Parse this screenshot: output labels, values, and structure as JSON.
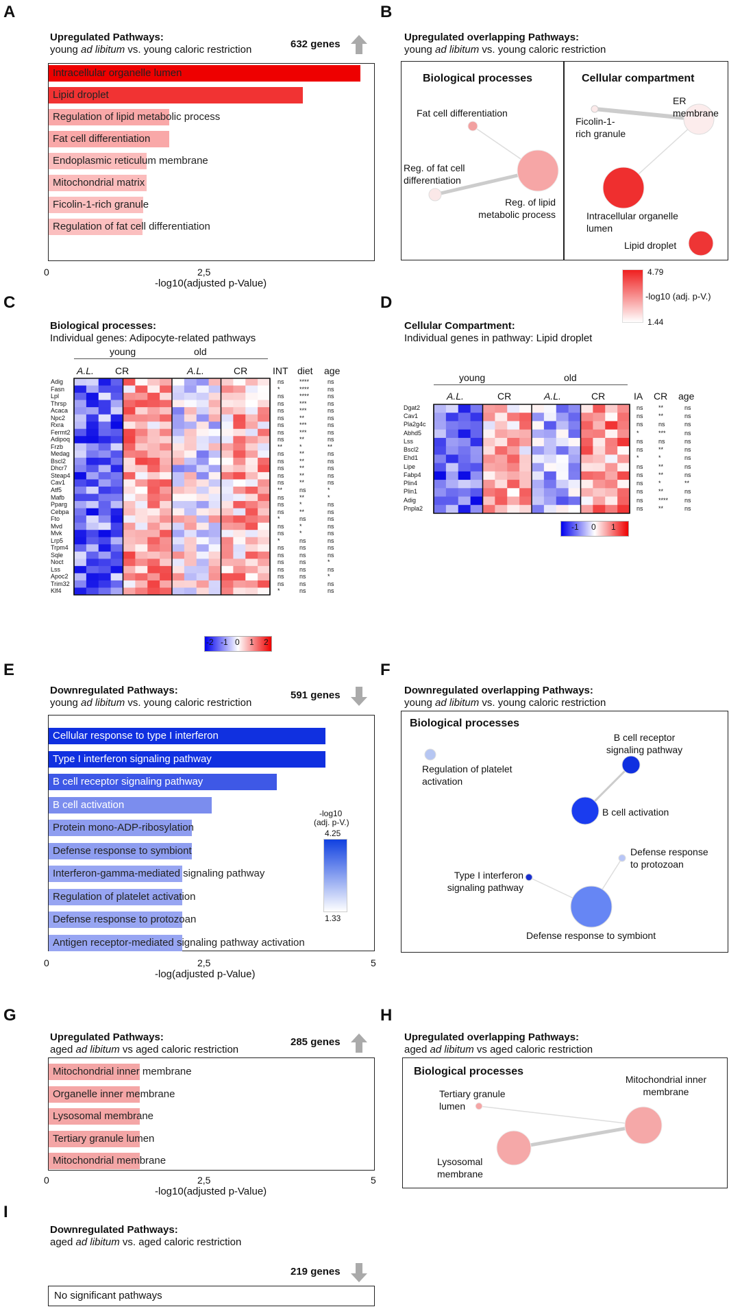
{
  "colors": {
    "up": "#f03030",
    "down": "#1030e0",
    "edge": "#cccccc"
  },
  "A": {
    "label": "A",
    "title": "Upregulated Pathways:",
    "sub_pre": "young ",
    "sub_ital": "ad libitum",
    "sub_post": " vs. young caloric restriction",
    "genes": "632 genes",
    "xlabel": "-log10(adjusted p-Value)",
    "tick0": "0",
    "tick1": "2,5",
    "chart_data": {
      "type": "bar",
      "orientation": "horizontal",
      "categories": [
        "Intracellular organelle lumen",
        "Lipid droplet",
        "Regulation of lipid metabolic process",
        "Fat cell differentiation",
        "Endoplasmic reticulum membrane",
        "Mitochondrial matrix",
        "Ficolin-1-rich granule",
        "Regulation of fat cell differentiation"
      ],
      "values": [
        4.79,
        3.9,
        1.85,
        1.85,
        1.5,
        1.5,
        1.45,
        1.44
      ],
      "xlim": [
        0,
        5
      ],
      "xlabel": "-log10(adjusted p-Value)",
      "color_min": 1.44,
      "color_max": 4.79
    }
  },
  "B": {
    "label": "B",
    "title": "Upregulated overlapping Pathways:",
    "sub_pre": "young ",
    "sub_ital": "ad libitum",
    "sub_post": " vs. young caloric restriction",
    "sec1": "Biological processes",
    "sec2": "Cellular compartment",
    "n1": "Fat cell differentiation",
    "n2a": "Reg. of fat cell",
    "n2b": "differentiation",
    "n3a": "Reg. of lipid",
    "n3b": "metabolic process",
    "n4": "ER membrane",
    "n5a": "Ficolin-1-",
    "n5b": "rich granule",
    "n6a": "Intracellular organelle",
    "n6b": "lumen",
    "n7": "Lipid droplet",
    "cb_max": "4.79",
    "cb_min": "1.44",
    "cb_label": "-log10 (adj. p-V.)"
  },
  "C": {
    "label": "C",
    "title": "Biological processes:",
    "sub": "Individual genes: Adipocyte-related pathways",
    "young": "young",
    "old": "old",
    "al": "A.L.",
    "cr": "CR",
    "int": "INT",
    "diet": "diet",
    "age": "age",
    "genes": [
      "Adig",
      "Fasn",
      "Lpl",
      "Thrsp",
      "Acaca",
      "Npc2",
      "Rxra",
      "Fermt2",
      "Adipoq",
      "Frzb",
      "Medag",
      "Bscl2",
      "Dhcr7",
      "Steap4",
      "Cav1",
      "Atf5",
      "Mafb",
      "Pparg",
      "Cebpa",
      "Fto",
      "Mvd",
      "Mvk",
      "Lrp5",
      "Trpm4",
      "Sqle",
      "Noct",
      "Lss",
      "Apoc2",
      "Trim32",
      "Klf4"
    ],
    "sig_int": [
      "ns",
      "*",
      "ns",
      "ns",
      "ns",
      "ns",
      "ns",
      "ns",
      "ns",
      "**",
      "ns",
      "ns",
      "ns",
      "ns",
      "ns",
      "**",
      "ns",
      "ns",
      "ns",
      "*",
      "ns",
      "ns",
      "*",
      "ns",
      "ns",
      "ns",
      "ns",
      "ns",
      "ns",
      "*"
    ],
    "sig_diet": [
      "****",
      "****",
      "****",
      "***",
      "***",
      "**",
      "***",
      "***",
      "**",
      "*",
      "**",
      "**",
      "**",
      "**",
      "**",
      "ns",
      "**",
      "*",
      "**",
      "ns",
      "*",
      "*",
      "ns",
      "ns",
      "ns",
      "ns",
      "ns",
      "ns",
      "ns",
      "ns"
    ],
    "sig_age": [
      "ns",
      "ns",
      "ns",
      "ns",
      "ns",
      "ns",
      "ns",
      "ns",
      "ns",
      "**",
      "ns",
      "ns",
      "ns",
      "ns",
      "ns",
      "*",
      "*",
      "ns",
      "ns",
      "ns",
      "ns",
      "ns",
      "ns",
      "ns",
      "ns",
      "*",
      "ns",
      "*",
      "ns",
      "ns"
    ],
    "cb_ticks": [
      "-2",
      "-1",
      "0",
      "1",
      "2"
    ]
  },
  "D": {
    "label": "D",
    "title": "Cellular Compartment:",
    "sub": "Individual genes in pathway: Lipid droplet",
    "young": "young",
    "old": "old",
    "al": "A.L.",
    "cr": "CR",
    "ia": "IA",
    "crh": "CR",
    "age": "age",
    "genes": [
      "Dgat2",
      "Cav1",
      "Pla2g4c",
      "Abhd5",
      "Lss",
      "Bscl2",
      "Ehd1",
      "Lipe",
      "Fabp4",
      "Plin4",
      "Plin1",
      "Adig",
      "Pnpla2"
    ],
    "sig_ia": [
      "ns",
      "ns",
      "ns",
      "*",
      "ns",
      "ns",
      "*",
      "ns",
      "ns",
      "ns",
      "ns",
      "ns",
      "ns"
    ],
    "sig_cr": [
      "**",
      "**",
      "ns",
      "***",
      "ns",
      "**",
      "*",
      "**",
      "**",
      "*",
      "**",
      "****",
      "**"
    ],
    "sig_age": [
      "ns",
      "ns",
      "ns",
      "ns",
      "ns",
      "ns",
      "ns",
      "ns",
      "ns",
      "**",
      "ns",
      "ns",
      "ns"
    ],
    "cb_ticks": [
      "-1",
      "0",
      "1"
    ]
  },
  "E": {
    "label": "E",
    "title": "Downregulated Pathways:",
    "sub_pre": "young ",
    "sub_ital": "ad libitum",
    "sub_post": " vs. young caloric restriction",
    "genes": "591 genes",
    "xlabel": "-log(adjusted p-Value)",
    "tick0": "0",
    "tick1": "2,5",
    "tick2": "5",
    "cb_title1": "-log10",
    "cb_title2": "(adj. p-V.)",
    "cb_max": "4.25",
    "cb_min": "1.33",
    "chart_data": {
      "type": "bar",
      "orientation": "horizontal",
      "categories": [
        "Cellular response to type I interferon",
        "Type I interferon signaling pathway",
        "B cell receptor signaling pathway",
        "B cell activation",
        "Protein mono-ADP-ribosylation",
        "Defense response to symbiont",
        "Interferon-gamma-mediated signaling pathway",
        "Regulation of platelet activation",
        "Defense response to protozoan",
        "Antigen receptor-mediated signaling pathway activation"
      ],
      "values": [
        4.25,
        4.25,
        3.5,
        2.5,
        2.2,
        2.2,
        2.05,
        2.05,
        2.05,
        2.05
      ],
      "xlim": [
        0,
        5
      ],
      "xlabel": "-log(adjusted p-Value)",
      "color_min": 1.33,
      "color_max": 4.25
    }
  },
  "F": {
    "label": "F",
    "title": "Downregulated overlapping Pathways:",
    "sub_pre": "young ",
    "sub_ital": "ad libitum",
    "sub_post": " vs. young caloric restriction",
    "sec": "Biological processes",
    "n1a": "Regulation of platelet",
    "n1b": "activation",
    "n2a": "B cell receptor",
    "n2b": "signaling pathway",
    "n3": "B cell activation",
    "n4a": "Defense response",
    "n4b": "to protozoan",
    "n5a": "Type I interferon",
    "n5b": "signaling pathway",
    "n6": "Defense response to symbiont"
  },
  "G": {
    "label": "G",
    "title": "Upregulated Pathways:",
    "sub_pre": "aged ",
    "sub_ital": "ad libitum",
    "sub_post": " vs aged caloric restriction",
    "genes": "285 genes",
    "xlabel": "-log10(adjusted p-Value)",
    "tick0": "0",
    "tick1": "2,5",
    "tick2": "5",
    "chart_data": {
      "type": "bar",
      "orientation": "horizontal",
      "categories": [
        "Mitochondrial inner membrane",
        "Organelle inner membrane",
        "Lysosomal membrane",
        "Tertiary granule lumen",
        "Mitochondrial membrane"
      ],
      "values": [
        1.4,
        1.4,
        1.4,
        1.4,
        1.4
      ],
      "xlim": [
        0,
        5
      ],
      "xlabel": "-log10(adjusted p-Value)"
    }
  },
  "H": {
    "label": "H",
    "title": "Upregulated overlapping Pathways:",
    "sub_pre": "aged ",
    "sub_ital": "ad libitum",
    "sub_post": " vs aged caloric restriction",
    "sec": "Biological processes",
    "n1a": "Tertiary granule",
    "n1b": "lumen",
    "n2a": "Mitochondrial inner",
    "n2b": "membrane",
    "n3a": "Lysosomal",
    "n3b": "membrane"
  },
  "I": {
    "label": "I",
    "title": "Downregulated Pathways:",
    "sub_pre": "aged ",
    "sub_ital": "ad libitum",
    "sub_post": " vs. aged caloric restriction",
    "genes": "219 genes",
    "none": "No significant pathways"
  }
}
